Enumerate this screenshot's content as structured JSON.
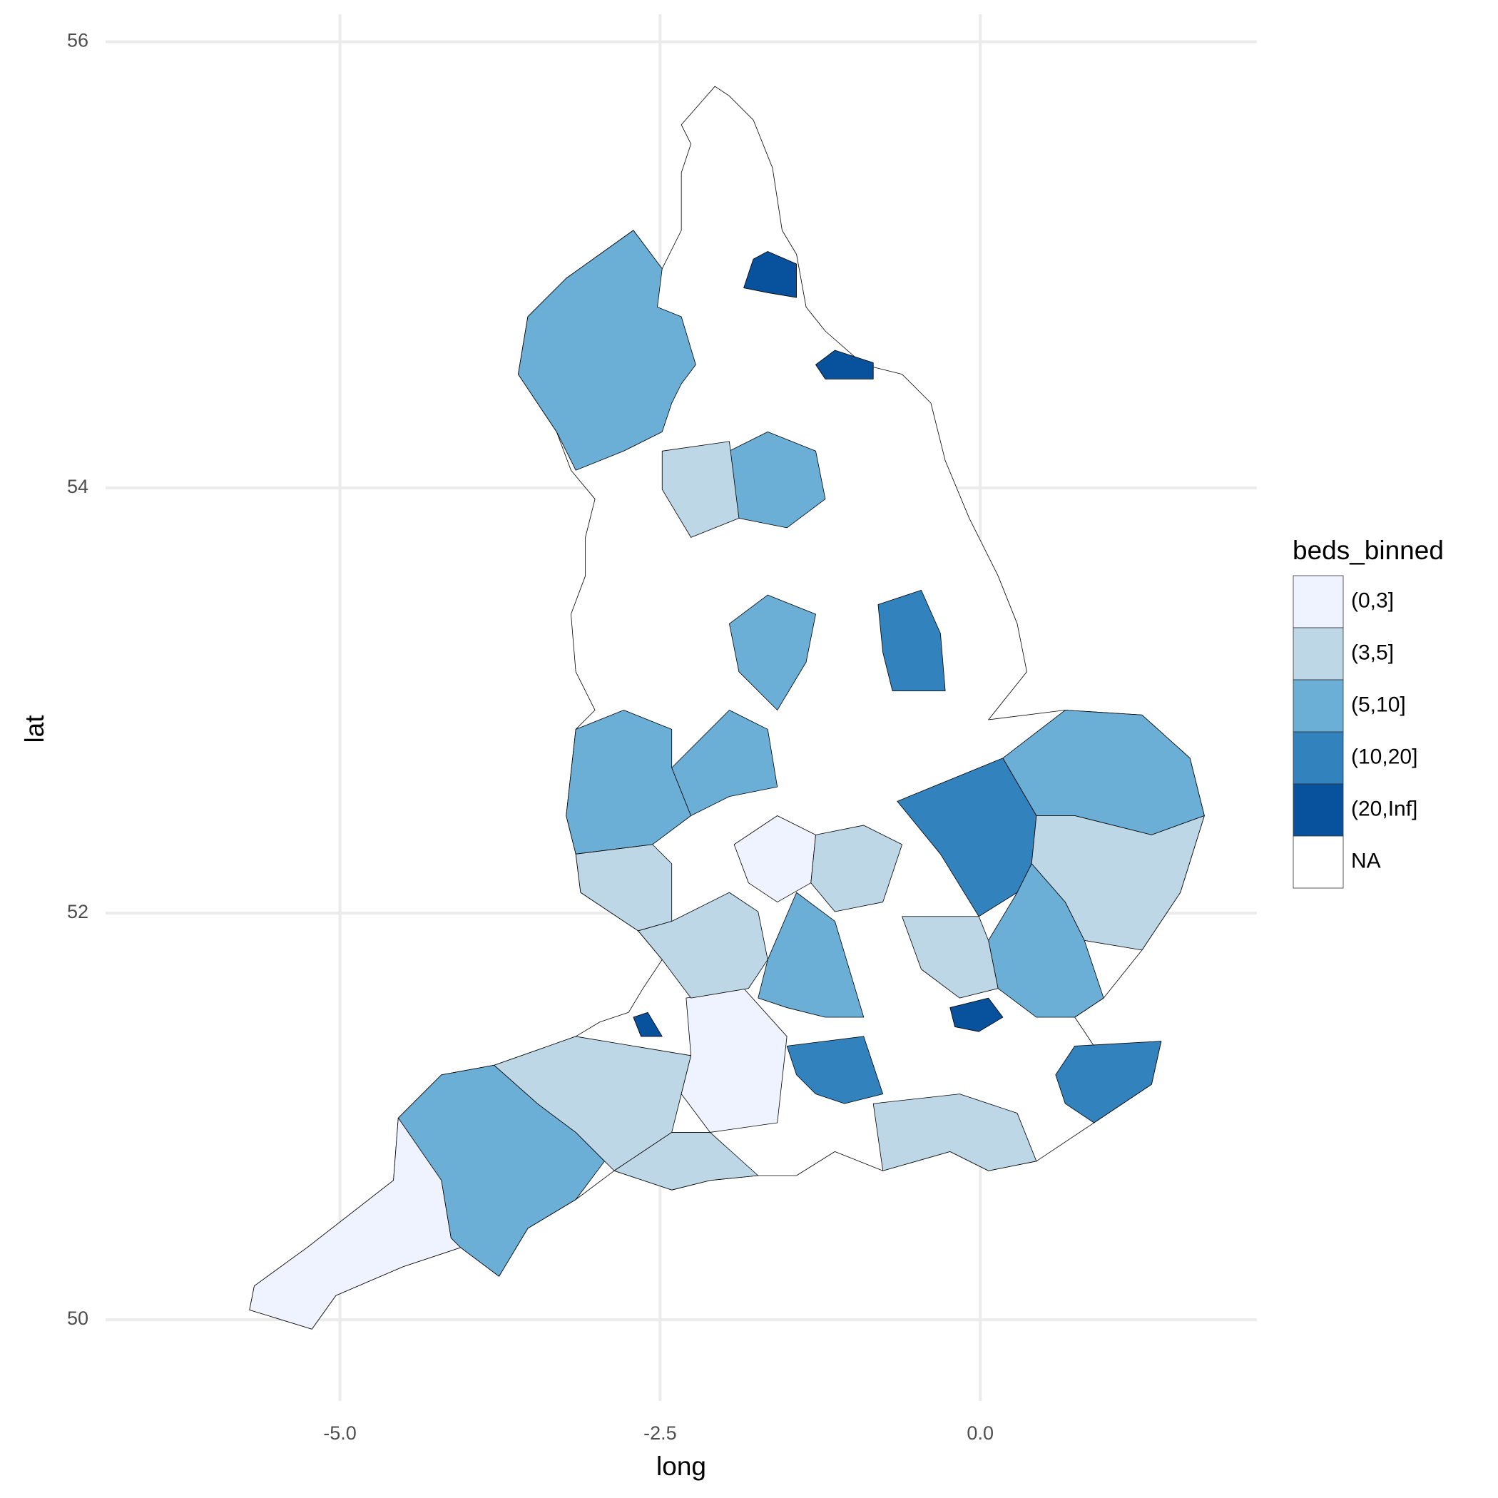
{
  "chart_data": {
    "type": "map",
    "x_label": "long",
    "y_label": "lat",
    "xlim": [
      -6.83,
      2.16
    ],
    "ylim": [
      49.59,
      56.12
    ],
    "xticks": [
      {
        "value": -5,
        "label": "-5.0"
      },
      -2.5,
      {
        "value": 0,
        "label": "0.0"
      }
    ],
    "yticks": [
      50,
      52,
      54,
      56
    ],
    "grid": true,
    "legend": {
      "title": "beds_binned",
      "position": "right",
      "categories": [
        "(0,3]",
        "(3,5]",
        "(5,10]",
        "(10,20]",
        "(20,Inf]",
        "NA"
      ],
      "colors": [
        "#eff3ff",
        "#bdd7e7",
        "#6baed6",
        "#3182bd",
        "#08519c",
        "#ffffff"
      ]
    }
  }
}
